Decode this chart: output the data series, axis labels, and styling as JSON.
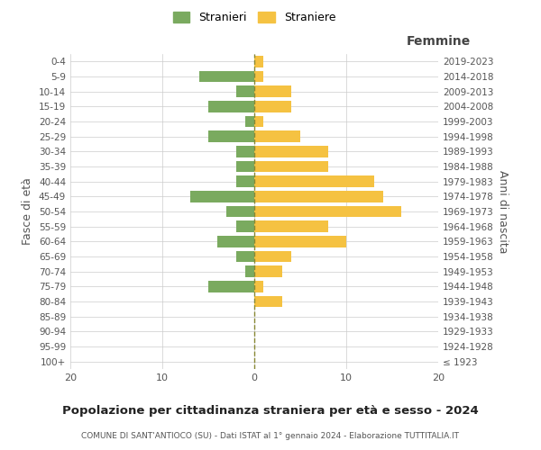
{
  "age_groups": [
    "100+",
    "95-99",
    "90-94",
    "85-89",
    "80-84",
    "75-79",
    "70-74",
    "65-69",
    "60-64",
    "55-59",
    "50-54",
    "45-49",
    "40-44",
    "35-39",
    "30-34",
    "25-29",
    "20-24",
    "15-19",
    "10-14",
    "5-9",
    "0-4"
  ],
  "birth_years": [
    "≤ 1923",
    "1924-1928",
    "1929-1933",
    "1934-1938",
    "1939-1943",
    "1944-1948",
    "1949-1953",
    "1954-1958",
    "1959-1963",
    "1964-1968",
    "1969-1973",
    "1974-1978",
    "1979-1983",
    "1984-1988",
    "1989-1993",
    "1994-1998",
    "1999-2003",
    "2004-2008",
    "2009-2013",
    "2014-2018",
    "2019-2023"
  ],
  "stranieri": [
    0,
    0,
    0,
    0,
    0,
    5,
    1,
    2,
    4,
    2,
    3,
    7,
    2,
    2,
    2,
    5,
    1,
    5,
    2,
    6,
    0
  ],
  "straniere": [
    0,
    0,
    0,
    0,
    3,
    1,
    3,
    4,
    10,
    8,
    16,
    14,
    13,
    8,
    8,
    5,
    1,
    4,
    4,
    1,
    1
  ],
  "color_stranieri": "#7aaa5f",
  "color_straniere": "#f5c242",
  "xlim": 20,
  "title": "Popolazione per cittadinanza straniera per età e sesso - 2024",
  "subtitle": "COMUNE DI SANT'ANTIOCO (SU) - Dati ISTAT al 1° gennaio 2024 - Elaborazione TUTTITALIA.IT",
  "xlabel_right": "Femmine",
  "ylabel": "Fasce di età",
  "ylabel_right": "Anni di nascita",
  "legend_stranieri": "Stranieri",
  "legend_straniere": "Straniere",
  "background_color": "#ffffff",
  "grid_color": "#cccccc"
}
